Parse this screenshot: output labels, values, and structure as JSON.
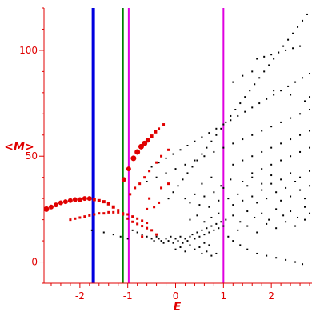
{
  "chart_data": {
    "type": "scatter",
    "title": "",
    "xlabel": "E",
    "ylabel": "<M>",
    "xlim": [
      -2.75,
      2.85
    ],
    "ylim": [
      -10,
      120
    ],
    "x_ticks": [
      -2,
      -1,
      0,
      1,
      2
    ],
    "y_ticks": [
      0,
      50,
      100
    ],
    "axis_color": "#e00000",
    "grid": false,
    "legend": "none",
    "vertical_lines": [
      {
        "x": -1.72,
        "color": "#0000e0",
        "style": "thick"
      },
      {
        "x": -1.1,
        "color": "#008000",
        "style": "thin"
      },
      {
        "x": -0.98,
        "color": "#e000e0",
        "style": "thin"
      },
      {
        "x": 1.0,
        "color": "#e000e0",
        "style": "thin"
      }
    ],
    "series": [
      {
        "color": "#e00000",
        "marker": "square",
        "points": [
          [
            -2.7,
            25,
            6
          ],
          [
            -2.6,
            26,
            5
          ],
          [
            -2.5,
            27,
            5
          ],
          [
            -2.4,
            28,
            5
          ],
          [
            -2.3,
            28.5,
            5
          ],
          [
            -2.2,
            29,
            5
          ],
          [
            -2.1,
            29.5,
            5
          ],
          [
            -2.0,
            29.5,
            5
          ],
          [
            -1.9,
            30,
            5
          ],
          [
            -1.8,
            30,
            5
          ],
          [
            -1.7,
            29.5,
            4
          ],
          [
            -1.6,
            29,
            4
          ],
          [
            -1.5,
            28.5,
            4
          ],
          [
            -1.4,
            27.5,
            4
          ],
          [
            -1.3,
            26,
            4
          ],
          [
            -1.2,
            24.5,
            3
          ],
          [
            -1.1,
            22.5,
            3
          ],
          [
            -1.0,
            20.5,
            3
          ],
          [
            -0.9,
            19,
            3
          ],
          [
            -0.8,
            18,
            3
          ],
          [
            -0.7,
            17,
            3
          ],
          [
            -0.6,
            16,
            3
          ],
          [
            -2.2,
            20,
            3
          ],
          [
            -2.1,
            20.5,
            3
          ],
          [
            -2.0,
            21,
            3
          ],
          [
            -1.9,
            21.5,
            3
          ],
          [
            -1.8,
            22,
            3
          ],
          [
            -1.7,
            22.5,
            3
          ],
          [
            -1.6,
            23,
            3
          ],
          [
            -1.5,
            23,
            3
          ],
          [
            -1.4,
            23.5,
            3
          ],
          [
            -1.3,
            23.5,
            3
          ],
          [
            -1.2,
            23.5,
            3
          ],
          [
            -1.1,
            23,
            3
          ],
          [
            -1.0,
            22.5,
            3
          ],
          [
            -0.9,
            21.5,
            3
          ],
          [
            -0.8,
            20.5,
            3
          ],
          [
            -0.7,
            19.5,
            3
          ],
          [
            -0.6,
            18.5,
            3
          ],
          [
            -1.08,
            39,
            5
          ],
          [
            -0.98,
            44,
            5
          ],
          [
            -0.88,
            49,
            6
          ],
          [
            -0.8,
            52,
            6
          ],
          [
            -0.72,
            54.5,
            6
          ],
          [
            -0.65,
            56,
            6
          ],
          [
            -0.58,
            57.5,
            5
          ],
          [
            -0.5,
            59.5,
            4
          ],
          [
            -0.42,
            61.5,
            4
          ],
          [
            -0.35,
            63,
            3
          ],
          [
            -0.25,
            65,
            3
          ],
          [
            -0.95,
            32,
            3
          ],
          [
            -0.85,
            35,
            3
          ],
          [
            -0.75,
            37,
            3
          ],
          [
            -0.65,
            40,
            3
          ],
          [
            -0.55,
            43,
            3
          ],
          [
            -0.4,
            47,
            3
          ],
          [
            -0.3,
            50,
            3
          ],
          [
            -0.15,
            53,
            3
          ],
          [
            -0.3,
            35,
            3
          ],
          [
            -0.15,
            37,
            3
          ],
          [
            -0.55,
            30,
            3
          ],
          [
            -0.6,
            25,
            3
          ],
          [
            -0.45,
            26,
            3
          ],
          [
            -0.35,
            28,
            3
          ],
          [
            -0.7,
            12,
            3
          ],
          [
            -0.5,
            15,
            3
          ],
          [
            -0.4,
            13,
            3
          ]
        ]
      },
      {
        "color": "#000000",
        "marker": "dot",
        "points": [
          [
            -1.75,
            15
          ],
          [
            -1.5,
            14
          ],
          [
            -1.3,
            13
          ],
          [
            -1.15,
            12
          ],
          [
            -1.0,
            11
          ],
          [
            -0.9,
            15
          ],
          [
            -0.8,
            14
          ],
          [
            -0.7,
            13
          ],
          [
            -0.6,
            12
          ],
          [
            -0.5,
            11
          ],
          [
            -0.45,
            10
          ],
          [
            -0.4,
            12
          ],
          [
            -0.35,
            11
          ],
          [
            -0.3,
            10
          ],
          [
            -0.25,
            9
          ],
          [
            -0.2,
            11
          ],
          [
            -0.15,
            10
          ],
          [
            -0.1,
            12
          ],
          [
            -0.05,
            9
          ],
          [
            0.0,
            11
          ],
          [
            0.05,
            10
          ],
          [
            0.1,
            12
          ],
          [
            0.15,
            9
          ],
          [
            0.2,
            11
          ],
          [
            0.25,
            10
          ],
          [
            0.3,
            12
          ],
          [
            0.35,
            13
          ],
          [
            0.4,
            11
          ],
          [
            0.45,
            14
          ],
          [
            0.5,
            12
          ],
          [
            0.55,
            15
          ],
          [
            0.6,
            13
          ],
          [
            0.65,
            16
          ],
          [
            0.7,
            14
          ],
          [
            0.75,
            17
          ],
          [
            0.8,
            15
          ],
          [
            0.85,
            18
          ],
          [
            0.9,
            16
          ],
          [
            0.95,
            19
          ],
          [
            1.0,
            17
          ],
          [
            0.0,
            6
          ],
          [
            0.1,
            7
          ],
          [
            0.2,
            5
          ],
          [
            0.3,
            8
          ],
          [
            0.4,
            6
          ],
          [
            0.5,
            7
          ],
          [
            0.6,
            9
          ],
          [
            0.7,
            8
          ],
          [
            0.55,
            4
          ],
          [
            0.65,
            5
          ],
          [
            0.75,
            3
          ],
          [
            0.85,
            4
          ],
          [
            1.1,
            12
          ],
          [
            1.2,
            10
          ],
          [
            1.35,
            8
          ],
          [
            1.5,
            6
          ],
          [
            1.7,
            4
          ],
          [
            1.9,
            3
          ],
          [
            2.1,
            2
          ],
          [
            2.3,
            1
          ],
          [
            2.5,
            0
          ],
          [
            2.65,
            -1
          ],
          [
            -0.15,
            30
          ],
          [
            -0.05,
            33
          ],
          [
            0.05,
            36
          ],
          [
            0.15,
            39
          ],
          [
            0.25,
            42
          ],
          [
            0.35,
            45
          ],
          [
            0.45,
            48
          ],
          [
            0.55,
            51
          ],
          [
            0.65,
            54
          ],
          [
            0.75,
            57
          ],
          [
            0.85,
            60
          ],
          [
            0.95,
            63
          ],
          [
            1.05,
            66
          ],
          [
            1.15,
            69
          ],
          [
            1.25,
            72
          ],
          [
            1.35,
            75
          ],
          [
            1.45,
            78
          ],
          [
            1.55,
            81
          ],
          [
            1.65,
            84
          ],
          [
            1.75,
            87
          ],
          [
            1.85,
            90
          ],
          [
            1.95,
            93
          ],
          [
            2.05,
            96
          ],
          [
            2.15,
            99
          ],
          [
            2.25,
            102
          ],
          [
            2.35,
            105
          ],
          [
            2.45,
            108
          ],
          [
            2.55,
            111
          ],
          [
            2.65,
            114
          ],
          [
            2.75,
            117
          ],
          [
            -0.5,
            45
          ],
          [
            -0.35,
            47
          ],
          [
            -0.2,
            49
          ],
          [
            -0.05,
            51
          ],
          [
            0.1,
            53
          ],
          [
            0.25,
            55
          ],
          [
            0.4,
            57
          ],
          [
            0.55,
            59
          ],
          [
            0.7,
            61
          ],
          [
            0.85,
            63
          ],
          [
            1.0,
            65
          ],
          [
            1.15,
            67
          ],
          [
            1.3,
            69
          ],
          [
            1.45,
            71
          ],
          [
            1.6,
            73
          ],
          [
            1.75,
            75
          ],
          [
            1.9,
            77
          ],
          [
            2.05,
            79
          ],
          [
            2.2,
            81
          ],
          [
            2.35,
            83
          ],
          [
            2.5,
            85
          ],
          [
            2.65,
            87
          ],
          [
            2.8,
            89
          ],
          [
            -0.6,
            38
          ],
          [
            -0.4,
            40
          ],
          [
            -0.2,
            42
          ],
          [
            0.0,
            44
          ],
          [
            0.2,
            46
          ],
          [
            0.4,
            48
          ],
          [
            0.6,
            50
          ],
          [
            0.8,
            52
          ],
          [
            1.0,
            54
          ],
          [
            1.2,
            56
          ],
          [
            1.4,
            58
          ],
          [
            1.6,
            60
          ],
          [
            1.8,
            62
          ],
          [
            2.0,
            64
          ],
          [
            2.2,
            66
          ],
          [
            2.4,
            68
          ],
          [
            2.6,
            70
          ],
          [
            2.8,
            72
          ],
          [
            1.2,
            46
          ],
          [
            1.4,
            48
          ],
          [
            1.6,
            50
          ],
          [
            1.8,
            52
          ],
          [
            2.0,
            54
          ],
          [
            2.2,
            56
          ],
          [
            2.4,
            58
          ],
          [
            2.6,
            60
          ],
          [
            2.8,
            62
          ],
          [
            1.6,
            42
          ],
          [
            1.8,
            44
          ],
          [
            2.0,
            46
          ],
          [
            2.2,
            48
          ],
          [
            2.4,
            50
          ],
          [
            2.6,
            52
          ],
          [
            2.8,
            54
          ],
          [
            1.7,
            96
          ],
          [
            1.85,
            97
          ],
          [
            2.0,
            98
          ],
          [
            2.15,
            99
          ],
          [
            2.3,
            100
          ],
          [
            2.45,
            101
          ],
          [
            2.6,
            102
          ],
          [
            1.2,
            85
          ],
          [
            1.4,
            88
          ],
          [
            1.6,
            90
          ],
          [
            2.05,
            81
          ],
          [
            2.4,
            79
          ],
          [
            2.7,
            76
          ],
          [
            2.8,
            78
          ],
          [
            0.2,
            30
          ],
          [
            0.3,
            28
          ],
          [
            0.4,
            32
          ],
          [
            0.5,
            27
          ],
          [
            0.6,
            31
          ],
          [
            0.7,
            26
          ],
          [
            0.8,
            33
          ],
          [
            0.9,
            29
          ],
          [
            1.0,
            35
          ],
          [
            1.1,
            30
          ],
          [
            1.2,
            27
          ],
          [
            1.3,
            32
          ],
          [
            1.4,
            29
          ],
          [
            1.5,
            36
          ],
          [
            1.6,
            31
          ],
          [
            1.7,
            28
          ],
          [
            1.8,
            34
          ],
          [
            1.9,
            30
          ],
          [
            2.0,
            37
          ],
          [
            2.1,
            33
          ],
          [
            2.2,
            29
          ],
          [
            2.3,
            35
          ],
          [
            2.4,
            31
          ],
          [
            2.5,
            38
          ],
          [
            2.6,
            34
          ],
          [
            2.7,
            30
          ],
          [
            2.8,
            36
          ],
          [
            0.3,
            20
          ],
          [
            0.45,
            22
          ],
          [
            0.6,
            19
          ],
          [
            0.75,
            21
          ],
          [
            0.9,
            23
          ],
          [
            1.05,
            20
          ],
          [
            1.2,
            22
          ],
          [
            1.35,
            19
          ],
          [
            1.5,
            24
          ],
          [
            1.65,
            21
          ],
          [
            1.8,
            23
          ],
          [
            1.95,
            20
          ],
          [
            2.1,
            25
          ],
          [
            2.25,
            22
          ],
          [
            2.4,
            24
          ],
          [
            2.55,
            21
          ],
          [
            2.7,
            26
          ],
          [
            2.8,
            23
          ],
          [
            1.3,
            15
          ],
          [
            1.5,
            17
          ],
          [
            1.7,
            14
          ],
          [
            1.9,
            18
          ],
          [
            2.1,
            16
          ],
          [
            2.3,
            19
          ],
          [
            2.5,
            17
          ],
          [
            2.7,
            20
          ],
          [
            1.4,
            38
          ],
          [
            1.6,
            40
          ],
          [
            1.8,
            37
          ],
          [
            2.0,
            41
          ],
          [
            2.2,
            39
          ],
          [
            2.4,
            42
          ],
          [
            2.6,
            40
          ],
          [
            2.8,
            43
          ],
          [
            0.55,
            37
          ],
          [
            0.75,
            40
          ],
          [
            0.95,
            36
          ],
          [
            1.15,
            39
          ]
        ]
      }
    ]
  }
}
